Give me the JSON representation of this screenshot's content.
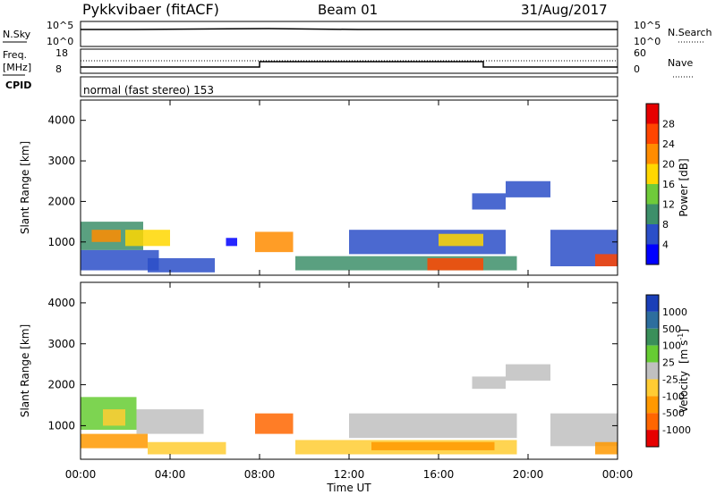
{
  "header": {
    "station": "Pykkvibaer (fitACF)",
    "beam": "Beam 01",
    "date": "31/Aug/2017"
  },
  "nsky_panel": {
    "left_label": "N.Sky",
    "right_label": "N.Search",
    "ticks_left": [
      "10^5",
      "10^0"
    ],
    "ticks_right": [
      "10^5",
      "10^0"
    ]
  },
  "freq_panel": {
    "left_label": "Freq.",
    "left_unit": "[MHz]",
    "right_label": "Nave",
    "ticks_left": [
      "18",
      "8"
    ],
    "ticks_right": [
      "60",
      "0"
    ]
  },
  "cpid_panel": {
    "label": "CPID",
    "mode": "normal (fast stereo) 153"
  },
  "chart_data": [
    {
      "type": "heatmap",
      "title": "",
      "xlabel": "Time UT",
      "ylabel": "Slant Range [km]",
      "x_ticks": [
        "00:00",
        "04:00",
        "08:00",
        "12:00",
        "16:00",
        "20:00",
        "00:00"
      ],
      "xlim_hours": [
        0,
        24
      ],
      "y_ticks": [
        1000,
        2000,
        3000,
        4000
      ],
      "ylim": [
        180,
        4500
      ],
      "colorbar": {
        "label": "Power [dB]",
        "ticks": [
          "4",
          "8",
          "12",
          "16",
          "20",
          "24",
          "28"
        ],
        "colors": [
          "#0000ff",
          "#2b4fc8",
          "#3d8f6a",
          "#6fcb3a",
          "#ffd700",
          "#ff8c00",
          "#ff4500",
          "#e60000"
        ]
      },
      "regions": [
        {
          "t0": 0.0,
          "t1": 2.8,
          "r0": 800,
          "r1": 1500,
          "color": "#3d8f6a"
        },
        {
          "t0": 0.5,
          "t1": 1.8,
          "r0": 1000,
          "r1": 1300,
          "color": "#ff8c00"
        },
        {
          "t0": 0.0,
          "t1": 3.5,
          "r0": 300,
          "r1": 800,
          "color": "#2b4fc8"
        },
        {
          "t0": 2.0,
          "t1": 4.0,
          "r0": 900,
          "r1": 1300,
          "color": "#ffd700"
        },
        {
          "t0": 3.0,
          "t1": 6.0,
          "r0": 250,
          "r1": 600,
          "color": "#2b4fc8"
        },
        {
          "t0": 7.8,
          "t1": 9.5,
          "r0": 750,
          "r1": 1250,
          "color": "#ff8c00"
        },
        {
          "t0": 6.5,
          "t1": 7.0,
          "r0": 900,
          "r1": 1100,
          "color": "#0000ff"
        },
        {
          "t0": 9.6,
          "t1": 19.5,
          "r0": 300,
          "r1": 650,
          "color": "#3d8f6a"
        },
        {
          "t0": 15.5,
          "t1": 18.0,
          "r0": 300,
          "r1": 600,
          "color": "#ff4500"
        },
        {
          "t0": 12.0,
          "t1": 19.0,
          "r0": 700,
          "r1": 1300,
          "color": "#2b4fc8"
        },
        {
          "t0": 16.0,
          "t1": 18.0,
          "r0": 900,
          "r1": 1200,
          "color": "#ffd700"
        },
        {
          "t0": 17.5,
          "t1": 19.0,
          "r0": 1800,
          "r1": 2200,
          "color": "#2b4fc8"
        },
        {
          "t0": 19.0,
          "t1": 21.0,
          "r0": 2100,
          "r1": 2500,
          "color": "#2b4fc8"
        },
        {
          "t0": 21.0,
          "t1": 24.0,
          "r0": 400,
          "r1": 1300,
          "color": "#2b4fc8"
        },
        {
          "t0": 23.0,
          "t1": 24.0,
          "r0": 400,
          "r1": 700,
          "color": "#ff4500"
        }
      ]
    },
    {
      "type": "heatmap",
      "title": "",
      "xlabel": "Time UT",
      "ylabel": "Slant Range [km]",
      "x_ticks": [
        "00:00",
        "04:00",
        "08:00",
        "12:00",
        "16:00",
        "20:00",
        "00:00"
      ],
      "xlim_hours": [
        0,
        24
      ],
      "y_ticks": [
        1000,
        2000,
        3000,
        4000
      ],
      "ylim": [
        180,
        4500
      ],
      "colorbar": {
        "label": "Velocity",
        "unit": "[m s",
        "unit_exp": "-1",
        "unit_close": "]",
        "ticks": [
          "1000",
          "500",
          "100",
          "25",
          "-25",
          "-100",
          "-500",
          "-1000"
        ],
        "colors": [
          "#1a3fb8",
          "#2d6e9e",
          "#3a8f5a",
          "#66cc33",
          "#c0c0c0",
          "#ffcc33",
          "#ff9900",
          "#ff6600",
          "#e60000"
        ]
      },
      "regions": [
        {
          "t0": 0.0,
          "t1": 2.5,
          "r0": 900,
          "r1": 1700,
          "color": "#66cc33"
        },
        {
          "t0": 1.0,
          "t1": 2.0,
          "r0": 1000,
          "r1": 1400,
          "color": "#ffcc33"
        },
        {
          "t0": 2.5,
          "t1": 5.5,
          "r0": 800,
          "r1": 1400,
          "color": "#c0c0c0"
        },
        {
          "t0": 0.0,
          "t1": 3.0,
          "r0": 450,
          "r1": 800,
          "color": "#ff9900"
        },
        {
          "t0": 3.0,
          "t1": 6.5,
          "r0": 300,
          "r1": 600,
          "color": "#ffcc33"
        },
        {
          "t0": 7.8,
          "t1": 9.5,
          "r0": 800,
          "r1": 1300,
          "color": "#ff6600"
        },
        {
          "t0": 9.6,
          "t1": 19.5,
          "r0": 300,
          "r1": 650,
          "color": "#ffcc33"
        },
        {
          "t0": 13.0,
          "t1": 18.5,
          "r0": 400,
          "r1": 600,
          "color": "#ff9900"
        },
        {
          "t0": 12.0,
          "t1": 19.5,
          "r0": 700,
          "r1": 1300,
          "color": "#c0c0c0"
        },
        {
          "t0": 17.5,
          "t1": 19.0,
          "r0": 1900,
          "r1": 2200,
          "color": "#c0c0c0"
        },
        {
          "t0": 19.0,
          "t1": 21.0,
          "r0": 2100,
          "r1": 2500,
          "color": "#c0c0c0"
        },
        {
          "t0": 21.0,
          "t1": 24.0,
          "r0": 500,
          "r1": 1300,
          "color": "#c0c0c0"
        },
        {
          "t0": 23.0,
          "t1": 24.0,
          "r0": 300,
          "r1": 600,
          "color": "#ff9900"
        }
      ]
    }
  ]
}
